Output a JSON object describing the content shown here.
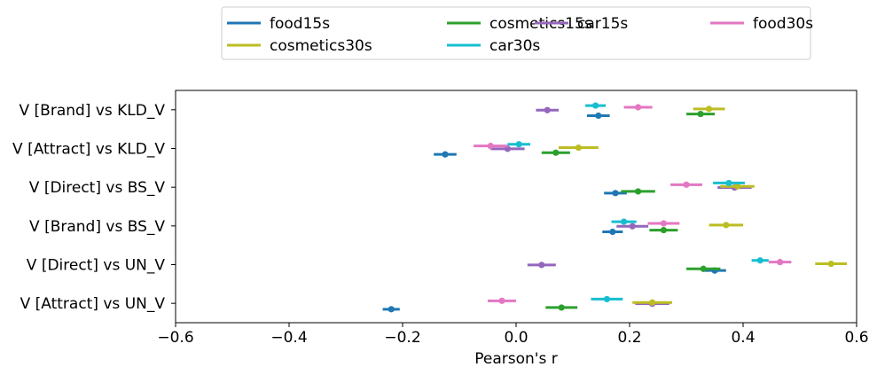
{
  "chart_data": {
    "type": "dot-errorbar",
    "xlabel": "Pearson's r",
    "ylabel": "",
    "xlim": [
      -0.6,
      0.6
    ],
    "xticks": [
      -0.6,
      -0.4,
      -0.2,
      0.0,
      0.2,
      0.4,
      0.6
    ],
    "xtick_labels": [
      "−0.6",
      "−0.4",
      "−0.2",
      "0.0",
      "0.2",
      "0.4",
      "0.6"
    ],
    "grid": false,
    "legend_position": "top-center",
    "legend_columns": 4,
    "categories": [
      "V [Brand] vs KLD_V",
      "V [Attract] vs KLD_V",
      "V [Direct] vs BS_V",
      "V [Brand] vs BS_V",
      "V [Direct] vs UN_V",
      "V [Attract] vs UN_V"
    ],
    "series": [
      {
        "name": "food15s",
        "color": "#1f77b4",
        "values": [
          0.145,
          -0.125,
          0.175,
          0.17,
          0.35,
          -0.22
        ],
        "err": [
          0.02,
          0.02,
          0.02,
          0.018,
          0.02,
          0.015
        ]
      },
      {
        "name": "cosmetics15s",
        "color": "#2ca02c",
        "values": [
          0.325,
          0.07,
          0.215,
          0.26,
          0.33,
          0.08
        ],
        "err": [
          0.025,
          0.025,
          0.03,
          0.025,
          0.03,
          0.028
        ]
      },
      {
        "name": "car15s",
        "color": "#9467bd",
        "values": [
          0.055,
          -0.015,
          0.385,
          0.205,
          0.045,
          0.24
        ],
        "err": [
          0.02,
          0.03,
          0.03,
          0.028,
          0.025,
          0.03
        ]
      },
      {
        "name": "food30s",
        "color": "#e377c2",
        "values": [
          0.215,
          -0.045,
          0.3,
          0.26,
          0.465,
          -0.025
        ],
        "err": [
          0.025,
          0.03,
          0.028,
          0.028,
          0.02,
          0.025
        ]
      },
      {
        "name": "cosmetics30s",
        "color": "#bcbd22",
        "values": [
          0.34,
          0.11,
          0.39,
          0.37,
          0.555,
          0.24
        ],
        "err": [
          0.028,
          0.035,
          0.03,
          0.03,
          0.028,
          0.035
        ]
      },
      {
        "name": "car30s",
        "color": "#17becf",
        "values": [
          0.14,
          0.005,
          0.375,
          0.19,
          0.43,
          0.16
        ],
        "err": [
          0.018,
          0.02,
          0.028,
          0.022,
          0.015,
          0.028
        ]
      }
    ]
  }
}
